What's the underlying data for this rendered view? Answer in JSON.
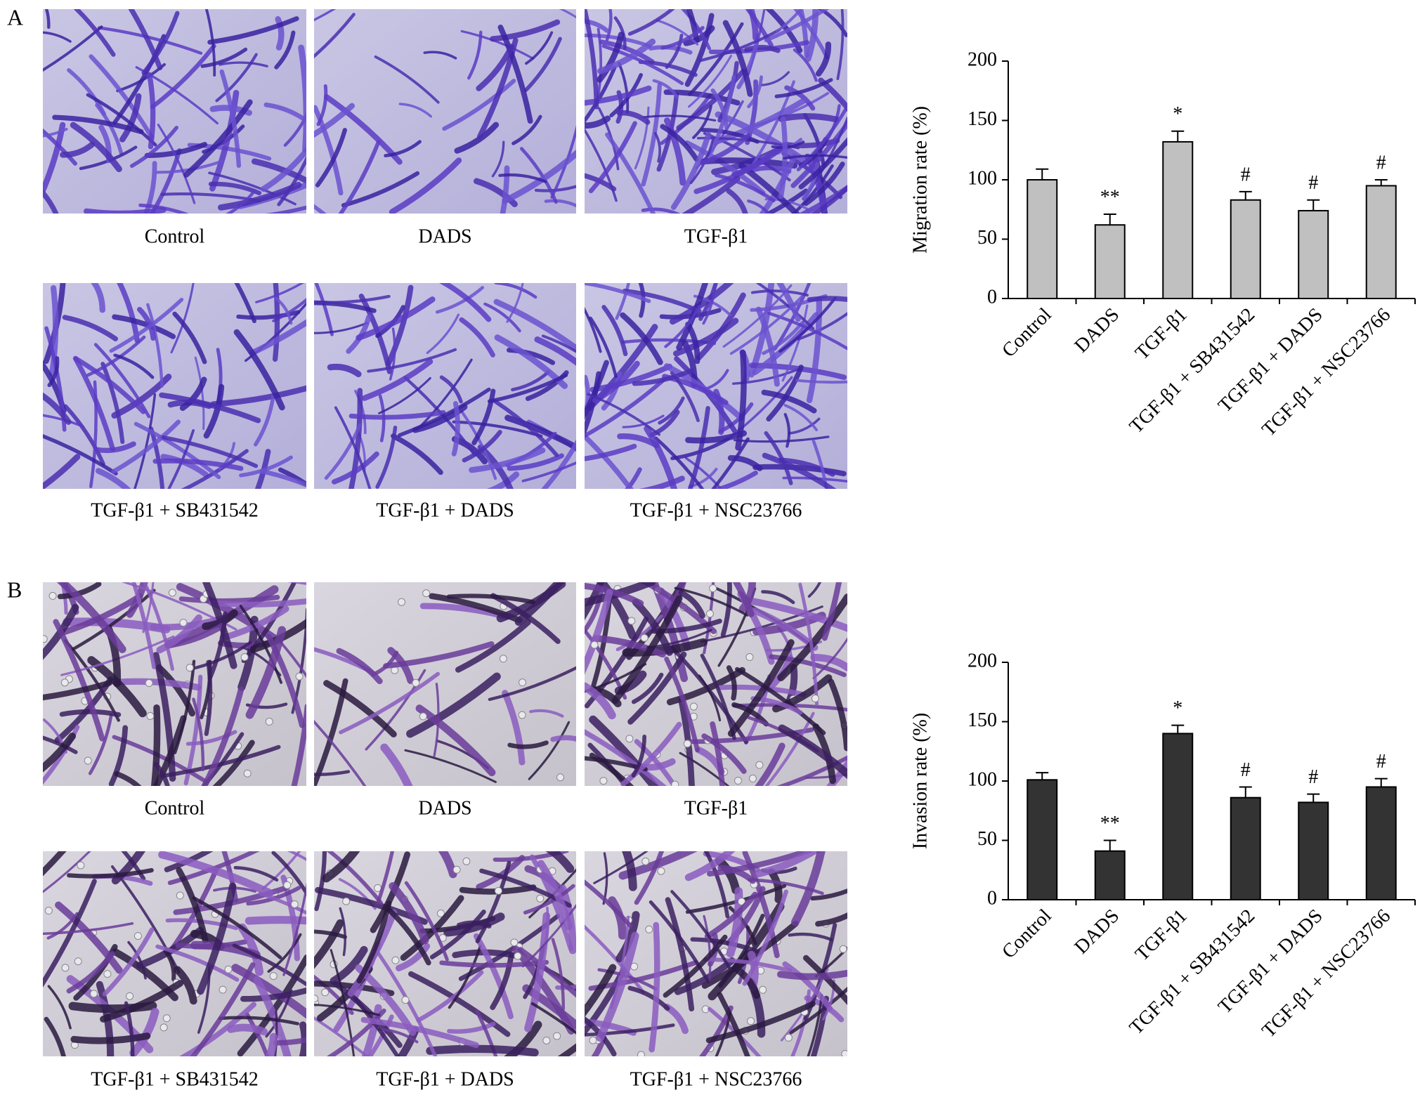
{
  "panels": [
    {
      "label": "A",
      "captions": [
        "Control",
        "DADS",
        "TGF-β1",
        "TGF-β1 + SB431542",
        "TGF-β1 + DADS",
        "TGF-β1 + NSC23766"
      ]
    },
    {
      "label": "B",
      "captions": [
        "Control",
        "DADS",
        "TGF-β1",
        "TGF-β1 + SB431542",
        "TGF-β1 + DADS",
        "TGF-β1 + NSC23766"
      ]
    }
  ],
  "chart_data": [
    {
      "type": "bar",
      "y_label": "Migration rate (%)",
      "categories": [
        "Control",
        "DADS",
        "TGF-β1",
        "TGF-β1 + SB431542",
        "TGF-β1 + DADS",
        "TGF-β1 + NSC23766"
      ],
      "values": [
        100,
        62,
        132,
        83,
        74,
        95
      ],
      "errors": [
        9,
        9,
        9,
        7,
        9,
        5
      ],
      "annotations": [
        null,
        "**",
        "*",
        "#",
        "#",
        "#"
      ],
      "color": "#c0c0c0",
      "ylim": [
        0,
        200
      ],
      "yticks": [
        0,
        50,
        100,
        150,
        200
      ]
    },
    {
      "type": "bar",
      "y_label": "Invasion rate (%)",
      "categories": [
        "Control",
        "DADS",
        "TGF-β1",
        "TGF-β1 + SB431542",
        "TGF-β1 + DADS",
        "TGF-β1 + NSC23766"
      ],
      "values": [
        101,
        41,
        140,
        86,
        82,
        95
      ],
      "errors": [
        6,
        9,
        7,
        9,
        7,
        7
      ],
      "annotations": [
        null,
        "**",
        "*",
        "#",
        "#",
        "#"
      ],
      "color": "#333333",
      "ylim": [
        0,
        200
      ],
      "yticks": [
        0,
        50,
        100,
        150,
        200
      ]
    }
  ]
}
